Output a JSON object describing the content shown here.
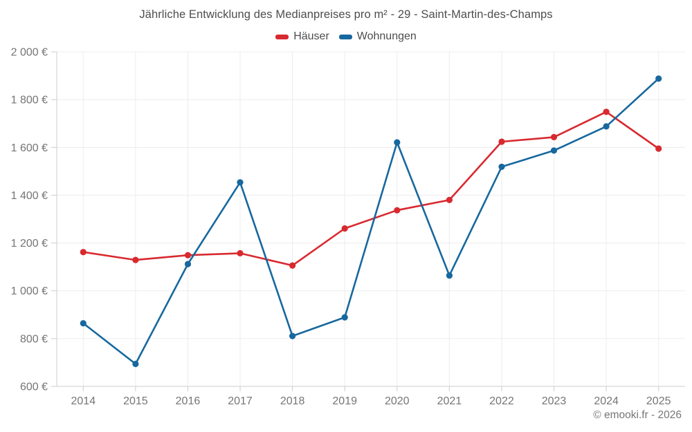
{
  "title": "Jährliche Entwicklung des Medianpreises pro m² - 29 - Saint-Martin-des-Champs",
  "footer": "© emooki.fr - 2026",
  "colors": {
    "haeuser": "#d8292f",
    "wohnungen": "#17689e",
    "gridline": "#ececec",
    "axis": "#cccccc",
    "axis_text": "#757575",
    "title_text": "#4d4d4d"
  },
  "chart_data": {
    "type": "line",
    "title": "Jährliche Entwicklung des Medianpreises pro m² - 29 - Saint-Martin-des-Champs",
    "x": [
      2014,
      2015,
      2016,
      2017,
      2018,
      2019,
      2020,
      2021,
      2022,
      2023,
      2024,
      2025
    ],
    "series": [
      {
        "name": "Häuser",
        "color": "#d8292f",
        "values": [
          1162,
          1129,
          1149,
          1157,
          1106,
          1261,
          1337,
          1380,
          1624,
          1643,
          1749,
          1595
        ]
      },
      {
        "name": "Wohnungen",
        "color": "#17689e",
        "values": [
          864,
          694,
          1112,
          1454,
          811,
          889,
          1621,
          1064,
          1519,
          1587,
          1688,
          1888
        ]
      }
    ],
    "ylim": [
      600,
      2000
    ],
    "yticks": [
      600,
      800,
      1000,
      1200,
      1400,
      1600,
      1800,
      2000
    ],
    "ytick_labels": [
      "600 €",
      "800 €",
      "1 000 €",
      "1 200 €",
      "1 400 €",
      "1 600 €",
      "1 800 €",
      "2 000 €"
    ],
    "ytick_suffix": " €",
    "xlabel": "",
    "ylabel": "",
    "grid": true,
    "legend_position": "top"
  }
}
